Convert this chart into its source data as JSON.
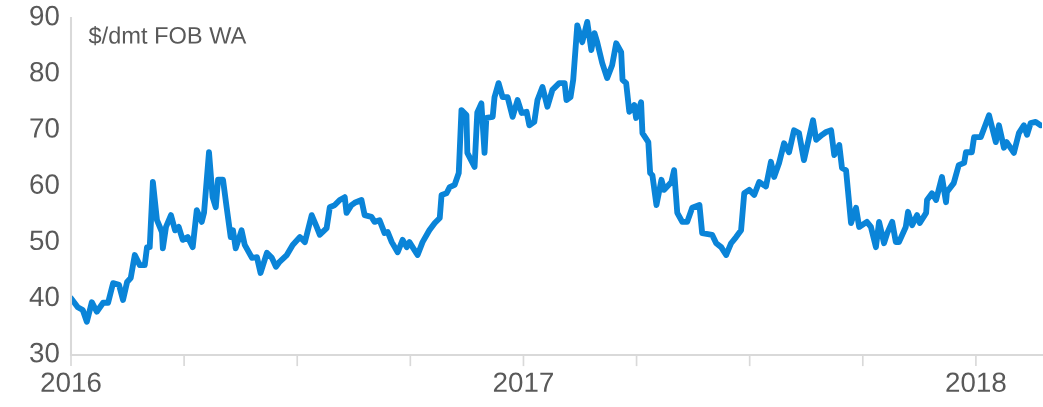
{
  "chart_data": {
    "type": "line",
    "annotations": [
      "$/dmt FOB WA"
    ],
    "x": [
      2016.0,
      2016.015,
      2016.026,
      2016.035,
      2016.046,
      2016.057,
      2016.071,
      2016.082,
      2016.093,
      2016.106,
      2016.115,
      2016.124,
      2016.132,
      2016.141,
      2016.152,
      2016.163,
      2016.168,
      2016.174,
      2016.181,
      2016.19,
      2016.201,
      2016.203,
      2016.21,
      2016.221,
      2016.23,
      2016.238,
      2016.247,
      2016.258,
      2016.269,
      2016.278,
      2016.289,
      2016.294,
      2016.305,
      2016.313,
      2016.32,
      2016.325,
      2016.336,
      2016.344,
      2016.353,
      2016.358,
      2016.364,
      2016.377,
      2016.384,
      2016.4,
      2016.411,
      2016.419,
      2016.433,
      2016.444,
      2016.453,
      2016.461,
      2016.477,
      2016.49,
      2016.506,
      2016.517,
      2016.532,
      2016.543,
      2016.55,
      2016.565,
      2016.572,
      2016.583,
      2016.594,
      2016.605,
      2016.609,
      2016.62,
      2016.627,
      2016.642,
      2016.649,
      2016.664,
      2016.671,
      2016.682,
      2016.693,
      2016.7,
      2016.709,
      2016.722,
      2016.733,
      2016.742,
      2016.748,
      2016.766,
      2016.777,
      2016.792,
      2016.804,
      2016.815,
      2016.819,
      2016.83,
      2016.837,
      2016.848,
      2016.857,
      2016.863,
      2016.874,
      2016.876,
      2016.892,
      2016.898,
      2016.907,
      2016.914,
      2016.918,
      2016.932,
      2016.936,
      2016.945,
      2016.954,
      2016.965,
      2016.976,
      2016.987,
      2016.996,
      2017.007,
      2017.013,
      2017.024,
      2017.031,
      2017.042,
      2017.053,
      2017.064,
      2017.079,
      2017.091,
      2017.095,
      2017.104,
      2017.11,
      2017.119,
      2017.13,
      2017.141,
      2017.15,
      2017.157,
      2017.163,
      2017.174,
      2017.185,
      2017.196,
      2017.205,
      2017.216,
      2017.219,
      2017.227,
      2017.234,
      2017.245,
      2017.249,
      2017.26,
      2017.263,
      2017.276,
      2017.28,
      2017.285,
      2017.294,
      2017.305,
      2017.311,
      2017.327,
      2017.333,
      2017.34,
      2017.351,
      2017.362,
      2017.373,
      2017.389,
      2017.395,
      2017.417,
      2017.426,
      2017.437,
      2017.448,
      2017.459,
      2017.47,
      2017.481,
      2017.488,
      2017.499,
      2017.51,
      2017.521,
      2017.536,
      2017.547,
      2017.554,
      2017.565,
      2017.576,
      2017.587,
      2017.598,
      2017.609,
      2017.62,
      2017.631,
      2017.64,
      2017.647,
      2017.66,
      2017.669,
      2017.68,
      2017.687,
      2017.698,
      2017.704,
      2017.713,
      2017.724,
      2017.735,
      2017.742,
      2017.759,
      2017.768,
      2017.779,
      2017.786,
      2017.797,
      2017.804,
      2017.815,
      2017.823,
      2017.83,
      2017.845,
      2017.85,
      2017.859,
      2017.87,
      2017.876,
      2017.89,
      2017.892,
      2017.903,
      2017.912,
      2017.925,
      2017.934,
      2017.936,
      2017.951,
      2017.962,
      2017.974,
      2017.978,
      2017.991,
      2017.996,
      2018.011,
      2018.029,
      2018.044,
      2018.051,
      2018.062,
      2018.068,
      2018.084,
      2018.095,
      2018.106,
      2018.113,
      2018.121,
      2018.132,
      2018.143
    ],
    "series": [
      {
        "color": "#0a84d8",
        "values": [
          40.1,
          38.5,
          38,
          35.9,
          39.4,
          37.7,
          39.3,
          39.3,
          42.8,
          42.5,
          39.8,
          43,
          43.7,
          47.8,
          46,
          46,
          49.2,
          49.2,
          60.8,
          54,
          51.9,
          49,
          52.8,
          54.9,
          52.2,
          52.8,
          50.5,
          51,
          49.2,
          55.8,
          53.7,
          55.3,
          66.1,
          58.1,
          56.3,
          61.2,
          61.2,
          56.3,
          51,
          52.2,
          49,
          52.2,
          49.6,
          47.3,
          47.4,
          44.6,
          48.2,
          47.3,
          45.7,
          46.6,
          47.8,
          49.6,
          51,
          50.1,
          54.9,
          52.8,
          51.4,
          52.6,
          56.3,
          56.7,
          57.6,
          58.1,
          55.3,
          56.7,
          57.1,
          57.6,
          54.9,
          54.6,
          53.7,
          54,
          51.7,
          51.9,
          50.1,
          48.3,
          50.5,
          49.2,
          50.1,
          47.8,
          50.1,
          52.2,
          53.5,
          54.4,
          58.5,
          58.8,
          59.9,
          60.3,
          62.4,
          73.6,
          72.7,
          66,
          63.5,
          73.2,
          74.8,
          66,
          72.2,
          72.4,
          75.9,
          78.4,
          75.9,
          75.9,
          72.4,
          75.4,
          73.1,
          73.3,
          70.9,
          71.5,
          75.4,
          77.7,
          74.2,
          77.2,
          78.4,
          78.4,
          75.4,
          75.9,
          79,
          88.7,
          85.7,
          89.3,
          84.3,
          87.3,
          85.7,
          82,
          79.3,
          81.6,
          85.5,
          83.9,
          79,
          78.4,
          73.3,
          74.5,
          72.2,
          75,
          69.5,
          67.9,
          62.4,
          62,
          56.7,
          61.2,
          59.4,
          60.8,
          62.9,
          55.3,
          53.7,
          53.7,
          56.2,
          56.7,
          51.7,
          51.4,
          49.9,
          49.2,
          47.8,
          49.9,
          51,
          52.2,
          58.8,
          59.4,
          58.5,
          60.8,
          60,
          64.4,
          61.7,
          64.2,
          67.7,
          66.1,
          70,
          69.5,
          64.7,
          68.6,
          71.8,
          68.3,
          69.2,
          69.7,
          70,
          65.6,
          67.4,
          63.3,
          62.9,
          53.5,
          56.2,
          52.8,
          53.7,
          52.8,
          49.2,
          53.7,
          49.9,
          51.7,
          53.7,
          50.1,
          50.1,
          52.8,
          55.5,
          53.1,
          54.9,
          53.5,
          55.3,
          57.6,
          58.8,
          57.6,
          61.7,
          57.2,
          59,
          60.6,
          63.8,
          64.2,
          66.1,
          66.1,
          68.8,
          68.8,
          72.7,
          67.9,
          70.9,
          66.9,
          67.9,
          66,
          69.5,
          70.9,
          69.2,
          71.3,
          71.5,
          70.9
        ]
      }
    ],
    "xlim": [
      2016,
      2018.146
    ],
    "xticks": [
      2016,
      {
        "value": 2016.25,
        "label": null
      },
      {
        "value": 2016.5,
        "label": null
      },
      {
        "value": 2016.75,
        "label": null
      },
      2017,
      {
        "value": 2017.25,
        "label": null
      },
      {
        "value": 2017.5,
        "label": null
      },
      {
        "value": 2017.75,
        "label": null
      },
      2018
    ],
    "ylim": [
      30,
      90
    ],
    "yticks": [
      30,
      40,
      50,
      60,
      70,
      80,
      90
    ],
    "grid": false,
    "marker": "none",
    "line_style": "solid"
  }
}
